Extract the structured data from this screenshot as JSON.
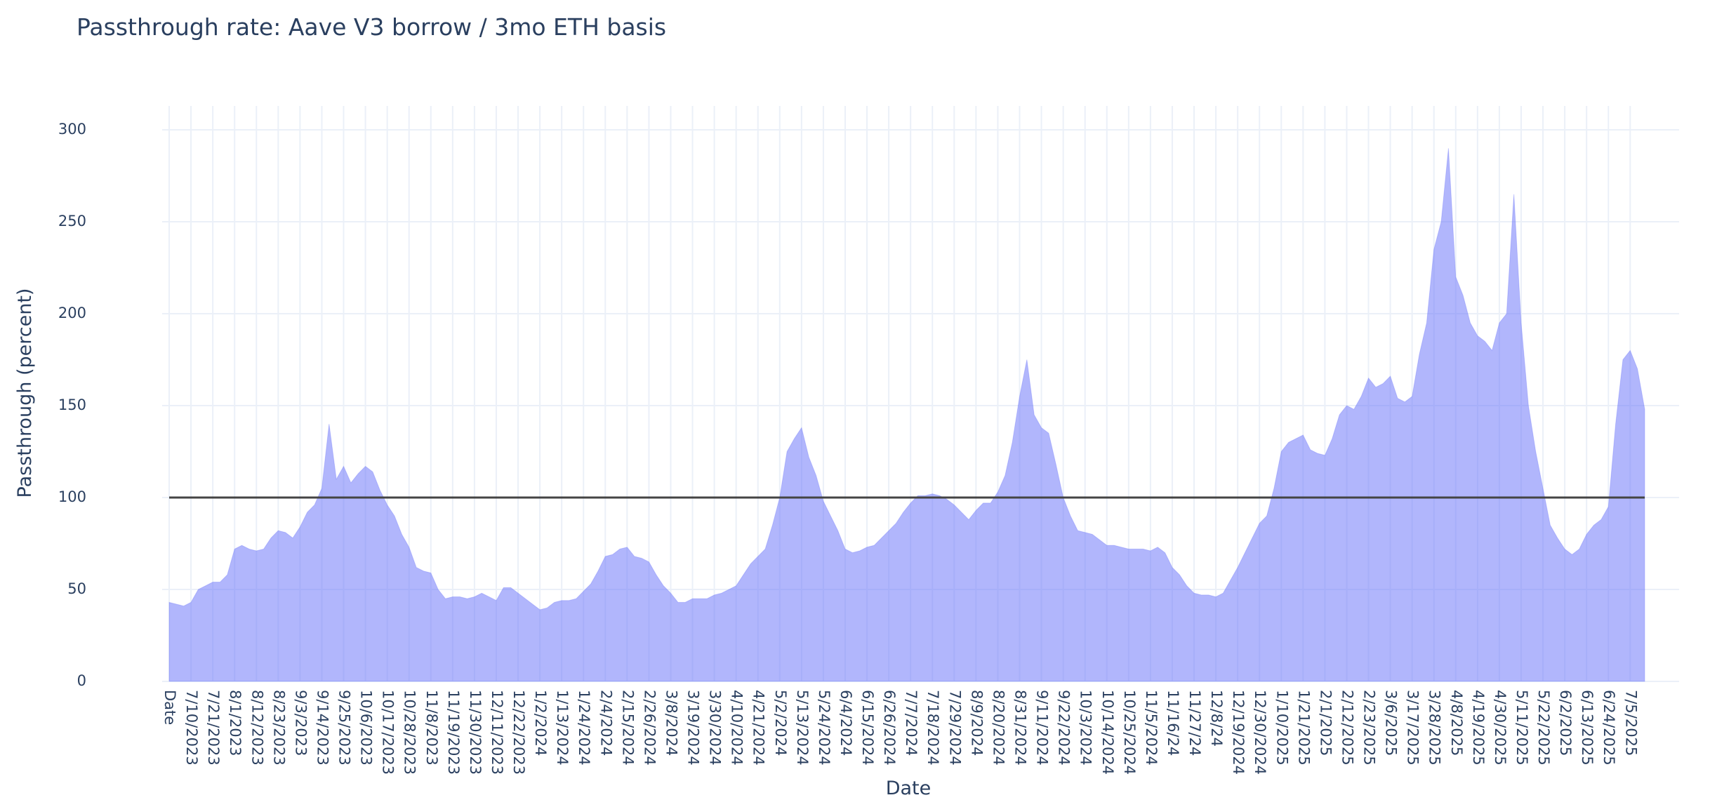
{
  "chart_data": {
    "type": "area",
    "title": "Passthrough rate: Aave V3 borrow / 3mo ETH basis",
    "x_label": "Date",
    "y_label": "Passthrough (percent)",
    "categories": [
      "Date",
      null,
      null,
      "7/10/2023",
      null,
      null,
      "7/21/2023",
      null,
      null,
      "8/1/2023",
      null,
      null,
      "8/12/2023",
      null,
      null,
      "8/23/2023",
      null,
      null,
      "9/3/2023",
      null,
      null,
      "9/14/2023",
      null,
      null,
      "9/25/2023",
      null,
      null,
      "10/6/2023",
      null,
      null,
      "10/17/2023",
      null,
      null,
      "10/28/2023",
      null,
      null,
      "11/8/2023",
      null,
      null,
      "11/19/2023",
      null,
      null,
      "11/30/2023",
      null,
      null,
      "12/11/2023",
      null,
      null,
      "12/22/2023",
      null,
      null,
      "1/2/2024",
      null,
      null,
      "1/13/2024",
      null,
      null,
      "1/24/2024",
      null,
      null,
      "2/4/2024",
      null,
      null,
      "2/15/2024",
      null,
      null,
      "2/26/2024",
      null,
      null,
      "3/8/2024",
      null,
      null,
      "3/19/2024",
      null,
      null,
      "3/30/2024",
      null,
      null,
      "4/10/2024",
      null,
      null,
      "4/21/2024",
      null,
      null,
      "5/2/2024",
      null,
      null,
      "5/13/2024",
      null,
      null,
      "5/24/2024",
      null,
      null,
      "6/4/2024",
      null,
      null,
      "6/15/2024",
      null,
      null,
      "6/26/2024",
      null,
      null,
      "7/7/2024",
      null,
      null,
      "7/18/2024",
      null,
      null,
      "7/29/2024",
      null,
      null,
      "8/9/2024",
      null,
      null,
      "8/20/2024",
      null,
      null,
      "8/31/2024",
      null,
      null,
      "9/11/2024",
      null,
      null,
      "9/22/2024",
      null,
      null,
      "10/3/2024",
      null,
      null,
      "10/14/2024",
      null,
      null,
      "10/25/2024",
      null,
      null,
      "11/5/2024",
      null,
      null,
      "11/16/24",
      null,
      null,
      "11/27/24",
      null,
      null,
      "12/8/24",
      null,
      null,
      "12/19/2024",
      null,
      null,
      "12/30/2024",
      null,
      null,
      "1/10/2025",
      null,
      null,
      "1/21/2025",
      null,
      null,
      "2/1/2025",
      null,
      null,
      "2/12/2025",
      null,
      null,
      "2/23/2025",
      null,
      null,
      "3/6/2025",
      null,
      null,
      "3/17/2025",
      null,
      null,
      "3/28/2025",
      null,
      null,
      "4/8/2025",
      null,
      null,
      "4/19/2025",
      null,
      null,
      "4/30/2025",
      null,
      null,
      "5/11/2025",
      null,
      null,
      "5/22/2025",
      null,
      null,
      "6/2/2025",
      null,
      null,
      "6/13/2025",
      null,
      null,
      "6/24/2025",
      null,
      null,
      "7/5/2025",
      null,
      null
    ],
    "values": [
      43,
      42,
      41,
      43,
      50,
      52,
      54,
      54,
      58,
      72,
      74,
      72,
      71,
      72,
      78,
      82,
      81,
      78,
      84,
      92,
      96,
      105,
      140,
      110,
      117,
      108,
      113,
      117,
      114,
      104,
      96,
      90,
      80,
      73,
      62,
      60,
      59,
      50,
      45,
      46,
      46,
      45,
      46,
      48,
      46,
      44,
      51,
      51,
      48,
      45,
      42,
      39,
      40,
      43,
      44,
      44,
      45,
      49,
      53,
      60,
      68,
      69,
      72,
      73,
      68,
      67,
      65,
      58,
      52,
      48,
      43,
      43,
      45,
      45,
      45,
      47,
      48,
      50,
      52,
      58,
      64,
      68,
      72,
      85,
      100,
      125,
      132,
      138,
      122,
      112,
      98,
      90,
      82,
      72,
      70,
      71,
      73,
      74,
      78,
      82,
      86,
      92,
      97,
      101,
      101,
      102,
      101,
      99,
      96,
      92,
      88,
      93,
      97,
      97,
      103,
      112,
      130,
      155,
      175,
      145,
      138,
      135,
      118,
      100,
      90,
      82,
      81,
      80,
      77,
      74,
      74,
      73,
      72,
      72,
      72,
      71,
      73,
      70,
      62,
      58,
      52,
      48,
      47,
      47,
      46,
      48,
      55,
      62,
      70,
      78,
      86,
      90,
      105,
      125,
      130,
      132,
      134,
      126,
      124,
      123,
      132,
      145,
      150,
      148,
      155,
      165,
      160,
      162,
      166,
      154,
      152,
      155,
      178,
      195,
      235,
      250,
      290,
      220,
      210,
      195,
      188,
      185,
      180,
      195,
      200,
      265,
      195,
      150,
      125,
      105,
      85,
      78,
      72,
      69,
      72,
      80,
      85,
      88,
      95,
      140,
      175,
      180,
      170,
      148
    ],
    "color": "#636efa",
    "hline": 100,
    "hline_color": "#444444",
    "ylim": [
      0,
      313
    ],
    "yticks": [
      0,
      50,
      100,
      150,
      200,
      250,
      300
    ],
    "grid": true
  }
}
